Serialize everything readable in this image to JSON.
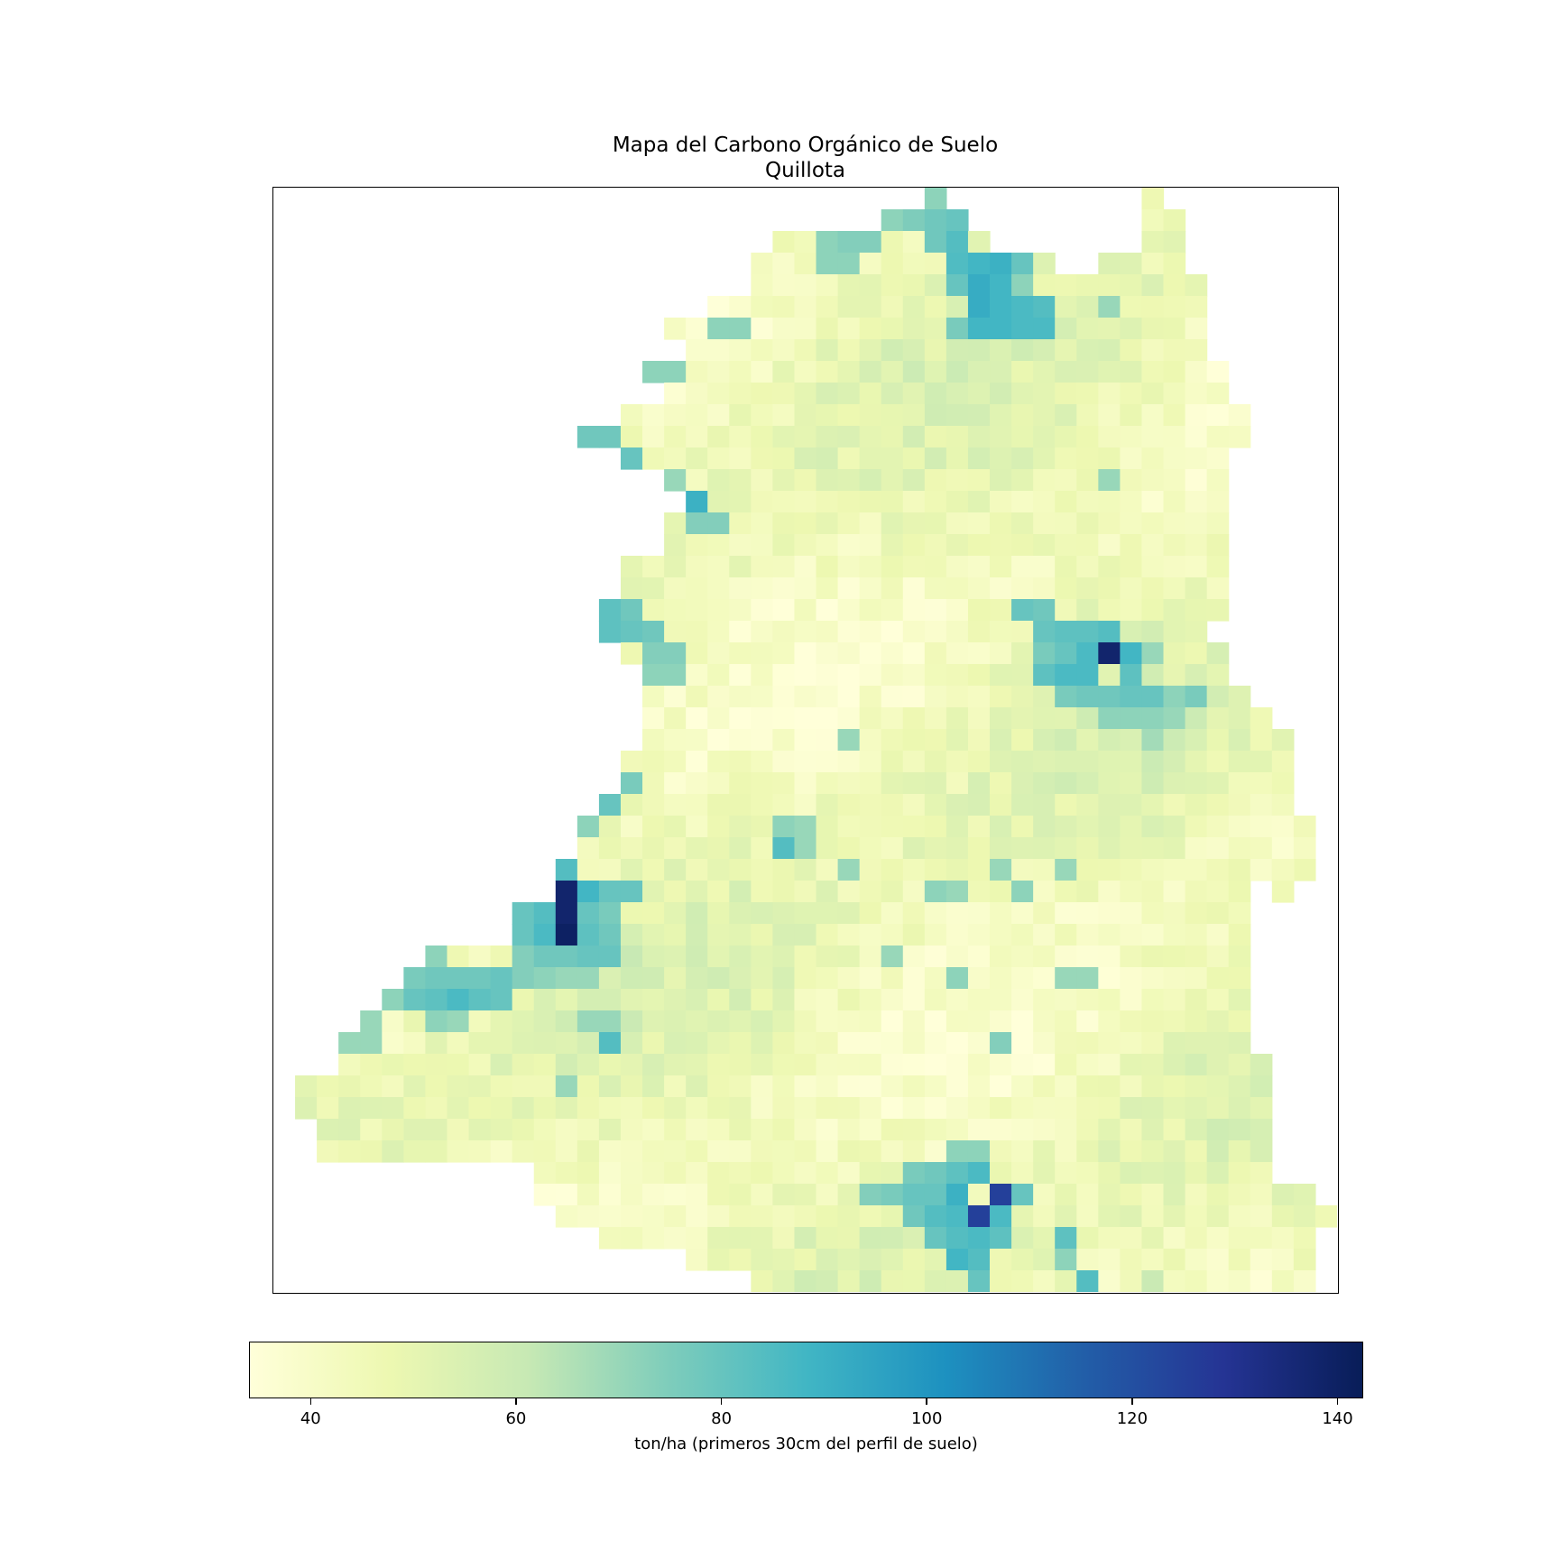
{
  "title_line1": "Mapa del Carbono Orgánico de Suelo",
  "title_line2": "Quillota",
  "colorbar": {
    "label": "ton/ha (primeros 30cm del perfil de suelo)",
    "min": 34,
    "max": 142.5,
    "ticks": [
      40,
      60,
      80,
      100,
      120,
      140
    ],
    "colormap": "YlGnBu",
    "stops": [
      "#ffffd9",
      "#edf8b1",
      "#c7e9b4",
      "#7fcdbb",
      "#41b6c4",
      "#1d91c0",
      "#225ea8",
      "#253494",
      "#081d58"
    ]
  },
  "chart_data": {
    "type": "heatmap",
    "title": "Mapa del Carbono Orgánico de Suelo\nQuillota",
    "value_label": "ton/ha (primeros 30cm del perfil de suelo)",
    "grid": false,
    "colorbar_placement": "bottom",
    "note": "Raster of soil organic carbon; blank cells outside the Quillota boundary.",
    "hotspots": [
      {
        "row": 42,
        "col": 25,
        "value": 142
      },
      {
        "row": 43,
        "col": 26,
        "value": 141
      },
      {
        "row": 22,
        "col": 38,
        "value": 138
      },
      {
        "row": 44,
        "col": 36,
        "value": 125
      },
      {
        "row": 45,
        "col": 36,
        "value": 123
      }
    ]
  }
}
